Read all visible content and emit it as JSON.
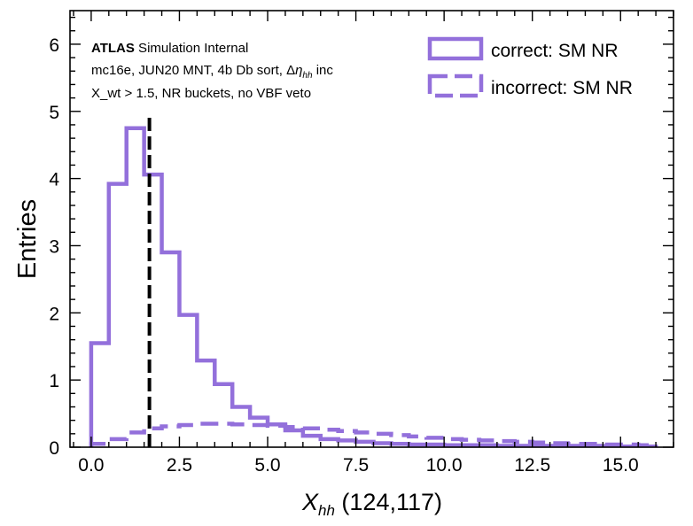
{
  "chart_data": {
    "type": "histogram",
    "x_label_main": "X",
    "x_label_sub": "hh",
    "x_label_rest": " (124,117)",
    "ylabel": "Entries",
    "xlim": [
      -0.6,
      16.5
    ],
    "ylim": [
      0,
      6.5
    ],
    "x_ticks": [
      "0.0",
      "2.5",
      "5.0",
      "7.5",
      "10.0",
      "12.5",
      "15.0"
    ],
    "x_tick_values": [
      0,
      2.5,
      5,
      7.5,
      10,
      12.5,
      15
    ],
    "y_ticks": [
      "0",
      "1",
      "2",
      "3",
      "4",
      "5",
      "6"
    ],
    "y_tick_values": [
      0,
      1,
      2,
      3,
      4,
      5,
      6
    ],
    "bin_edges": [
      0,
      0.5,
      1,
      1.5,
      2,
      2.5,
      3,
      3.5,
      4,
      4.5,
      5,
      5.5,
      6,
      6.5,
      7,
      7.5,
      8,
      8.5,
      9,
      9.5,
      10,
      10.5,
      11,
      11.5,
      12,
      12.5,
      13,
      13.5,
      14,
      14.5,
      15,
      15.5,
      16
    ],
    "series": [
      {
        "name": "correct: SM NR",
        "style": "solid",
        "values": [
          1.55,
          3.92,
          4.75,
          4.06,
          2.9,
          1.97,
          1.29,
          0.94,
          0.6,
          0.44,
          0.34,
          0.25,
          0.17,
          0.12,
          0.1,
          0.08,
          0.06,
          0.05,
          0.04,
          0.04,
          0.03,
          0.03,
          0.03,
          0.02,
          0.02,
          0.02,
          0.02,
          0.02,
          0.02,
          0.01,
          0.01,
          0.01
        ]
      },
      {
        "name": "incorrect: SM NR",
        "style": "dashed",
        "values": [
          0.05,
          0.12,
          0.22,
          0.28,
          0.31,
          0.33,
          0.35,
          0.35,
          0.34,
          0.33,
          0.32,
          0.3,
          0.28,
          0.26,
          0.24,
          0.22,
          0.2,
          0.18,
          0.16,
          0.14,
          0.12,
          0.11,
          0.1,
          0.09,
          0.08,
          0.07,
          0.06,
          0.05,
          0.05,
          0.04,
          0.04,
          0.03
        ]
      }
    ],
    "vline_x": 1.65,
    "vline_style": "black dashed",
    "series_color": "#9370db",
    "legend_position": "top-right",
    "annotation": {
      "brand": "ATLAS",
      "brand_rest": " Simulation Internal",
      "line2_part1": "mc16e, JUN20 MNT, 4b Db sort, Δ",
      "line2_eta": "η",
      "line2_sub": "hh",
      "line2_part2": " inc",
      "line3": "X_wt > 1.5, NR buckets, no VBF veto"
    }
  }
}
